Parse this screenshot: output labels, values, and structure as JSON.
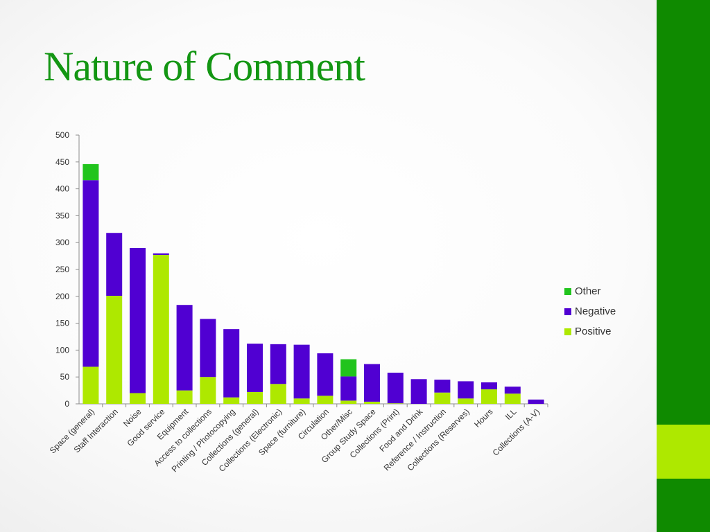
{
  "slide": {
    "title": "Nature of Comment"
  },
  "colors": {
    "positive": "#aee800",
    "negative": "#5000d2",
    "other": "#21c41d",
    "title": "#139613",
    "side_band": "#0f8a00",
    "side_accent": "#aee800"
  },
  "chart_data": {
    "type": "bar",
    "stacked": true,
    "title": "",
    "xlabel": "",
    "ylabel": "",
    "ylim": [
      0,
      500
    ],
    "yticks": [
      0,
      50,
      100,
      150,
      200,
      250,
      300,
      350,
      400,
      450,
      500
    ],
    "grid": false,
    "legend_position": "right",
    "categories": [
      "Space (general)",
      "Staff Interaction",
      "Noise",
      "Good service",
      "Equipment",
      "Access to collections",
      "Printing / Photocopying",
      "Collections (general)",
      "Collections (Electronic)",
      "Space (furniture)",
      "Circulation",
      "Other/Misc",
      "Group Study Space",
      "Collections (Print)",
      "Food and Drink",
      "Reference / Instruction",
      "Collections (Reserves)",
      "Hours",
      "ILL",
      "Collections (A-V)"
    ],
    "series": [
      {
        "name": "Positive",
        "color": "#aee800",
        "values": [
          69,
          201,
          20,
          277,
          25,
          50,
          12,
          22,
          37,
          10,
          15,
          6,
          4,
          1,
          0,
          21,
          10,
          27,
          19,
          0
        ]
      },
      {
        "name": "Negative",
        "color": "#5000d2",
        "values": [
          347,
          117,
          270,
          3,
          159,
          108,
          127,
          90,
          74,
          100,
          79,
          45,
          70,
          57,
          46,
          24,
          32,
          13,
          13,
          8
        ]
      },
      {
        "name": "Other",
        "color": "#21c41d",
        "values": [
          30,
          0,
          0,
          0,
          0,
          0,
          0,
          0,
          0,
          0,
          0,
          32,
          0,
          0,
          0,
          0,
          0,
          0,
          0,
          0
        ]
      }
    ],
    "legend_order": [
      "Other",
      "Negative",
      "Positive"
    ]
  }
}
